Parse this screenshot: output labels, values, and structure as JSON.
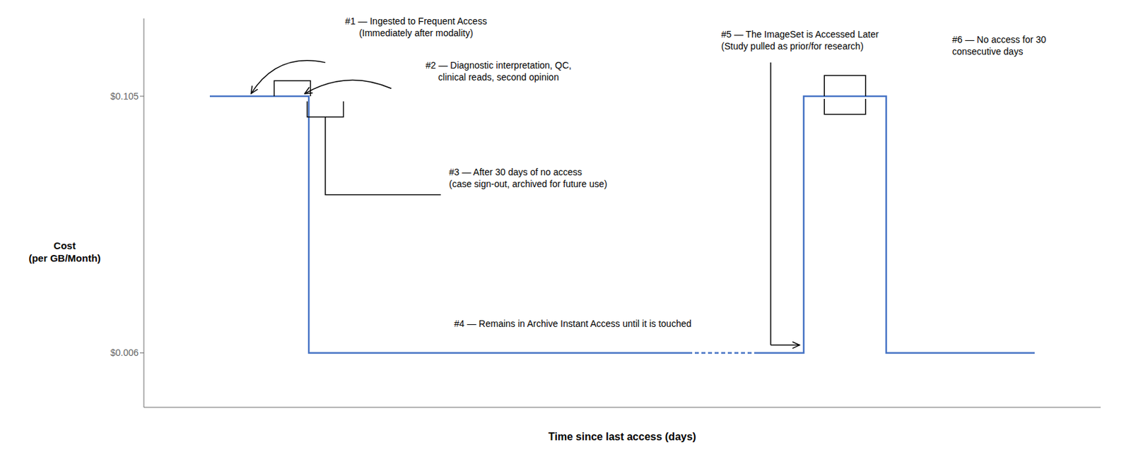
{
  "chart_data": {
    "type": "line",
    "xlabel": "Time since last access (days)",
    "ylabel": "Cost\n(per GB/Month)",
    "xlim": [
      -8,
      108
    ],
    "ylim": [
      -0.015,
      0.135
    ],
    "yticks": [
      {
        "value": 0.105,
        "label": "$0.105"
      },
      {
        "value": 0.006,
        "label": "$0.006"
      }
    ],
    "tick_labels": "y",
    "grid": false,
    "series": [
      {
        "x": [
          0,
          12,
          12,
          20,
          58
        ],
        "values": [
          0.105,
          0.105,
          0.006,
          0.006,
          0.006
        ],
        "color": "#4472C4",
        "line_style": "solid"
      },
      {
        "x": [
          58,
          66
        ],
        "values": [
          0.006,
          0.006
        ],
        "color": "#4472C4",
        "line_style": "dashed"
      },
      {
        "x": [
          66,
          72,
          72,
          82,
          82,
          100
        ],
        "values": [
          0.006,
          0.006,
          0.105,
          0.105,
          0.006,
          0.006
        ],
        "color": "#4472C4",
        "line_style": "solid"
      }
    ],
    "annotations": [
      "#1 — Ingested to Frequent Access\n(Immediately after modality)",
      "#2 — Diagnostic interpretation, QC,\nclinical reads, second opinion",
      "#3 — After 30 days of no access\n(case sign-out, archived for future use)",
      "#4 — Remains in Archive Instant Access until it is touched",
      "#5 — The ImageSet is Accessed Later\n(Study pulled as prior/for research)",
      "#6 — No access for 30\nconsecutive days"
    ]
  }
}
